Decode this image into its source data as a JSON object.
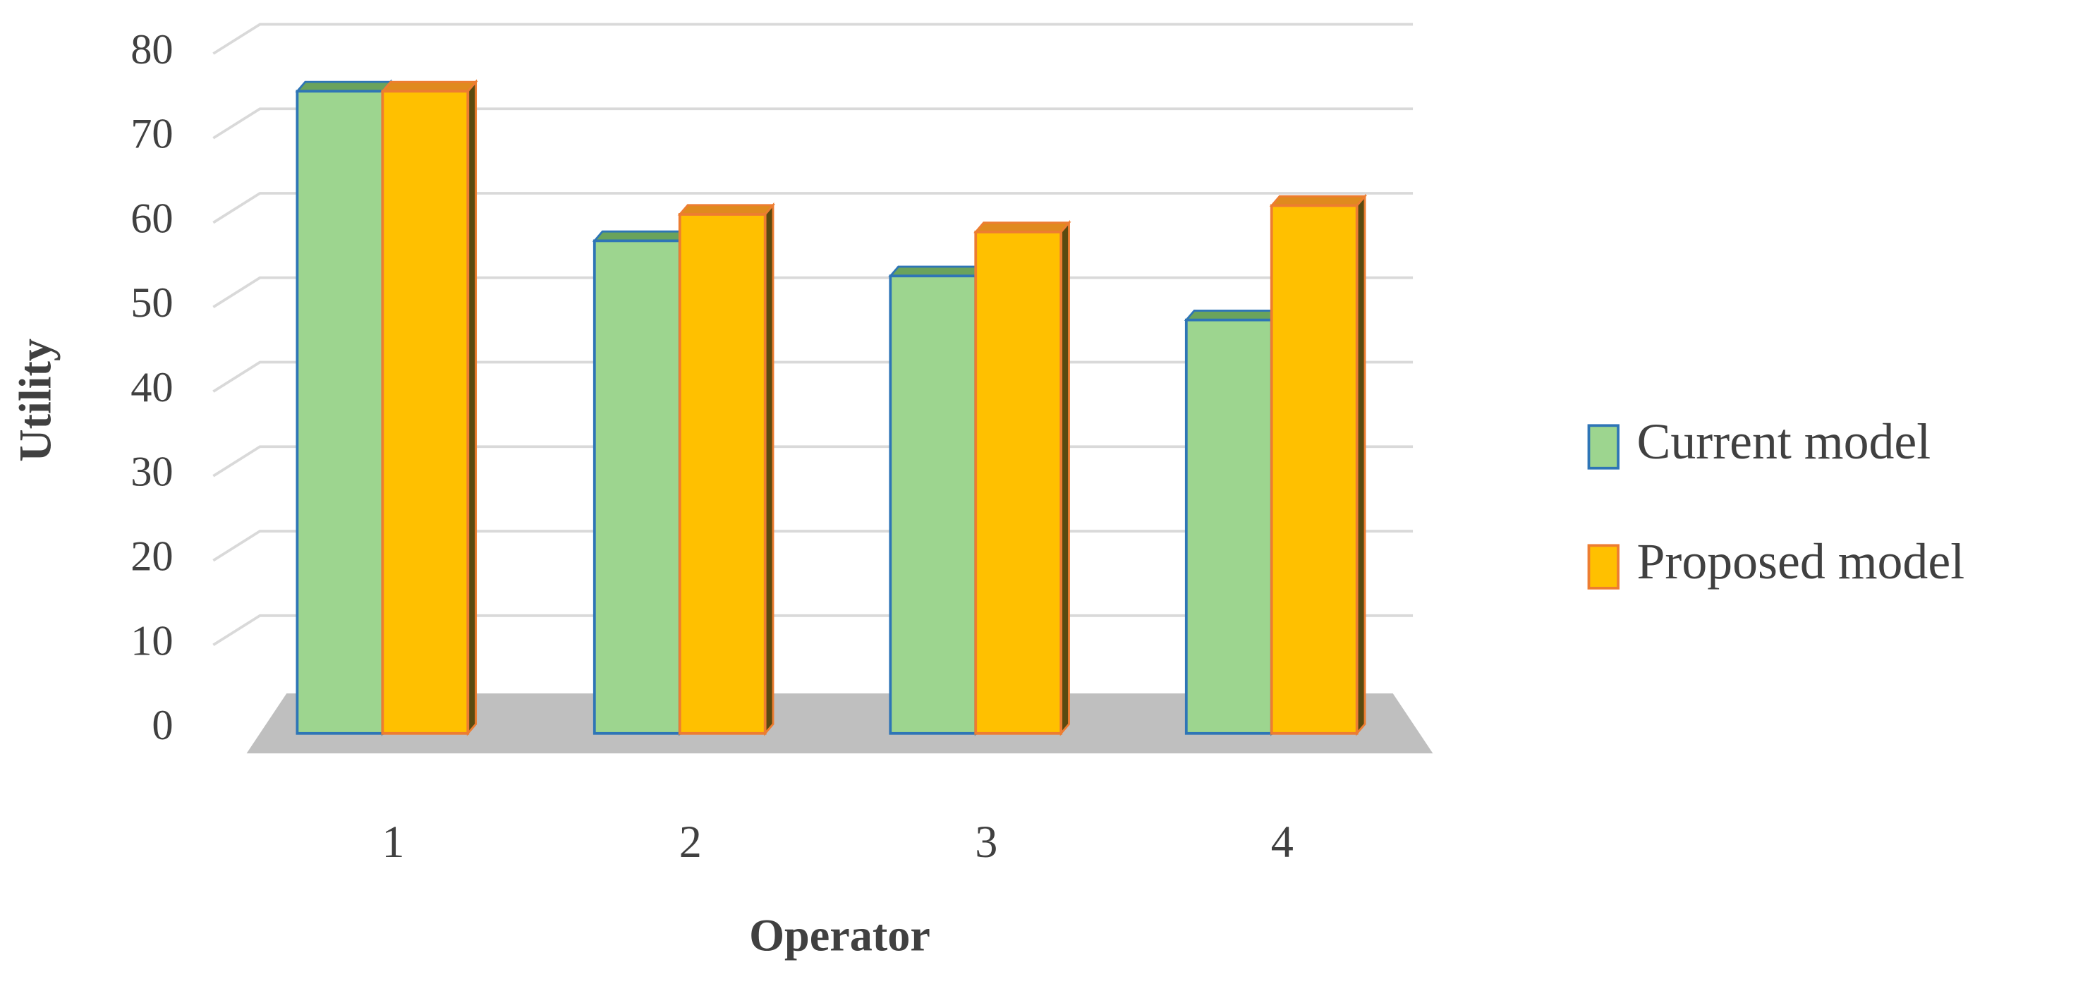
{
  "chart_data": {
    "type": "bar3d",
    "x_label": "Operator",
    "y_label": "Utility",
    "categories": [
      "1",
      "2",
      "3",
      "4"
    ],
    "series": [
      {
        "name": "Current model",
        "color": "#9dd58f",
        "edge": "#2e75b6",
        "values": [
          73,
          56,
          52,
          47
        ]
      },
      {
        "name": "Proposed model",
        "color": "#ffc000",
        "edge": "#ed7d31",
        "values": [
          73,
          59,
          57,
          60
        ]
      }
    ],
    "ylim": [
      0,
      80
    ],
    "yticks": [
      0,
      10,
      20,
      30,
      40,
      50,
      60,
      70,
      80
    ],
    "grid": true,
    "legend": "right"
  }
}
